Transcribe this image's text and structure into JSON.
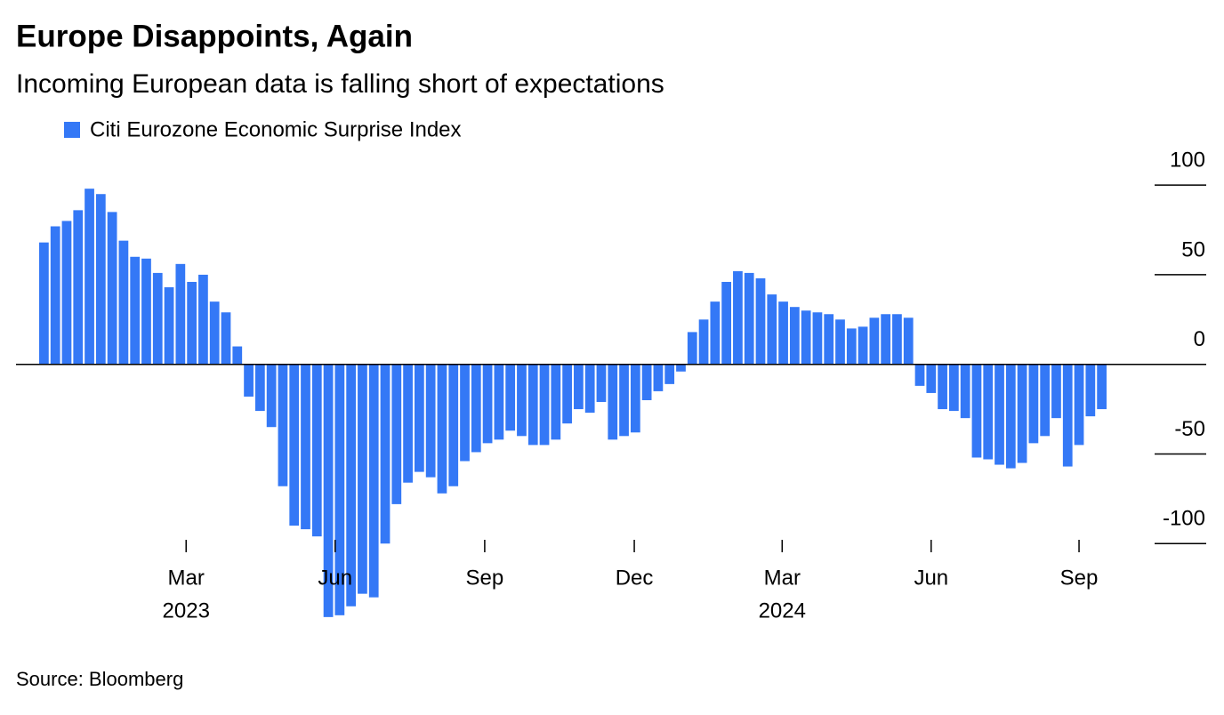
{
  "chart_data": {
    "type": "bar",
    "title": "Europe Disappoints, Again",
    "subtitle": "Incoming European data is falling short of expectations",
    "source": "Source: Bloomberg",
    "series": [
      {
        "name": "Citi Eurozone Economic Surprise Index",
        "color": "#3478f6",
        "values": [
          68,
          77,
          80,
          86,
          98,
          95,
          85,
          69,
          60,
          59,
          51,
          43,
          56,
          46,
          50,
          35,
          29,
          10,
          -18,
          -26,
          -35,
          -68,
          -90,
          -92,
          -96,
          -141,
          -140,
          -135,
          -128,
          -130,
          -100,
          -78,
          -66,
          -60,
          -63,
          -72,
          -68,
          -54,
          -49,
          -44,
          -42,
          -37,
          -40,
          -45,
          -45,
          -42,
          -33,
          -25,
          -27,
          -21,
          -42,
          -40,
          -38,
          -20,
          -15,
          -11,
          -4,
          18,
          25,
          35,
          46,
          52,
          51,
          48,
          39,
          35,
          32,
          30,
          29,
          28,
          25,
          20,
          21,
          26,
          28,
          28,
          26,
          -12,
          -16,
          -25,
          -26,
          -30,
          -52,
          -53,
          -56,
          -58,
          -55,
          -44,
          -40,
          -30,
          -57,
          -45,
          -29,
          -25
        ]
      }
    ],
    "xlim": [
      -0.5,
      93.5
    ],
    "xticks": [
      {
        "value": 12.5,
        "label": "Mar"
      },
      {
        "value": 25.6,
        "label": "Jun"
      },
      {
        "value": 38.75,
        "label": "Sep"
      },
      {
        "value": 51.9,
        "label": "Dec"
      },
      {
        "value": 64.9,
        "label": "Mar"
      },
      {
        "value": 78.0,
        "label": "Jun"
      },
      {
        "value": 91.0,
        "label": "Sep"
      }
    ],
    "year_labels": [
      {
        "value": 12.5,
        "label": "2023"
      },
      {
        "value": 64.9,
        "label": "2024"
      }
    ],
    "ylim": [
      -150,
      110
    ],
    "yticks": [
      -100,
      -50,
      0,
      50,
      100
    ]
  }
}
